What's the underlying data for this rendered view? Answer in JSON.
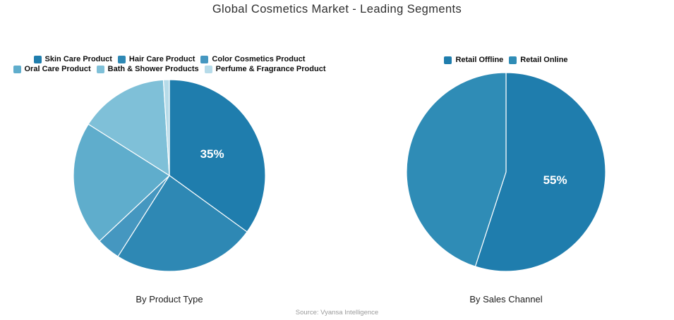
{
  "title": "Global Cosmetics Market - Leading Segments",
  "source": "Source: Vyansa Intelligence",
  "chart_data": [
    {
      "type": "pie",
      "title": "By Product Type",
      "legend_position": "top",
      "start_angle_deg": 0,
      "direction": "clockwise",
      "categories": [
        "Skin Care Product",
        "Hair Care Product",
        "Color Cosmetics Product",
        "Oral Care Product",
        "Bath & Shower Products",
        "Perfume & Fragrance Product"
      ],
      "values": [
        35,
        24,
        4,
        21,
        15,
        1
      ],
      "colors": [
        "#1f7dad",
        "#2e88b4",
        "#4597c0",
        "#5fadcc",
        "#7fc0d8",
        "#b6dbe9"
      ],
      "labels": [
        "35%",
        "",
        "",
        "",
        "",
        ""
      ],
      "label_color": "#ffffff"
    },
    {
      "type": "pie",
      "title": "By Sales Channel",
      "legend_position": "top",
      "start_angle_deg": 0,
      "direction": "clockwise",
      "categories": [
        "Retail Offline",
        "Retail Online"
      ],
      "values": [
        55,
        45
      ],
      "colors": [
        "#1f7dad",
        "#2f8cb6"
      ],
      "labels": [
        "55%",
        ""
      ],
      "label_color": "#ffffff"
    }
  ]
}
